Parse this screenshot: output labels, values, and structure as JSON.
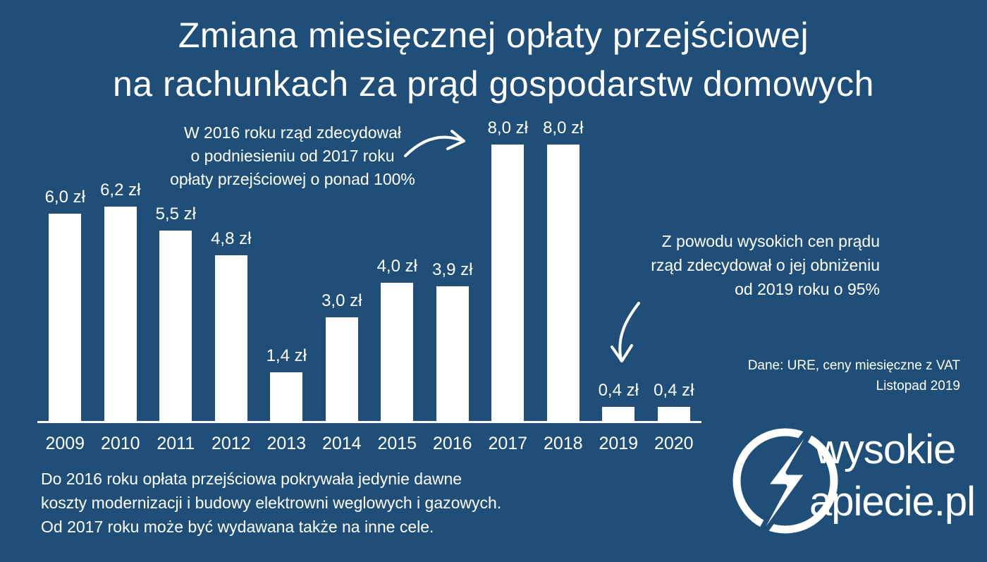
{
  "colors": {
    "background": "#1f4e79",
    "bar": "#ffffff",
    "text": "#ffffff"
  },
  "title": {
    "line1": "Zmiana miesięcznej opłaty przejściowej",
    "line2": "na rachunkach za prąd gospodarstw domowych"
  },
  "chart_data": {
    "type": "bar",
    "title": "Zmiana miesięcznej opłaty przejściowej na rachunkach za prąd gospodarstw domowych",
    "categories": [
      "2009",
      "2010",
      "2011",
      "2012",
      "2013",
      "2014",
      "2015",
      "2016",
      "2017",
      "2018",
      "2019",
      "2020"
    ],
    "values": [
      6.0,
      6.2,
      5.5,
      4.8,
      1.4,
      3.0,
      4.0,
      3.9,
      8.0,
      8.0,
      0.4,
      0.4
    ],
    "value_labels": [
      "6,0 zł",
      "6,2 zł",
      "5,5 zł",
      "4,8 zł",
      "1,4 zł",
      "3,0 zł",
      "4,0 zł",
      "3,9 zł",
      "8,0 zł",
      "8,0 zł",
      "0,4 zł",
      "0,4 zł"
    ],
    "xlabel": "",
    "ylabel": "",
    "ylim": [
      0,
      8
    ],
    "grid": false,
    "legend": false,
    "bar_color": "#ffffff"
  },
  "annotations": {
    "hike": {
      "text": "W 2016 roku rząd zdecydował\no podniesieniu od 2017 roku\nopłaty przejściowej o ponad 100%"
    },
    "cut": {
      "text": "Z powodu wysokich cen prądu\nrząd zdecydował o jej obniżeniu\nod 2019 roku o 95%"
    }
  },
  "source": {
    "text": "Dane: URE, ceny miesięczne z VAT\nListopad 2019"
  },
  "footnote": {
    "text": "Do 2016 roku opłata przejściowa pokrywała jedynie dawne\nkoszty modernizacji i budowy elektrowni weglowych i gazowych.\nOd 2017 roku może być wydawana także na inne cele."
  },
  "logo": {
    "line1": "wysokie",
    "line2": "apiecie.pl",
    "icon": "lightning-bolt-in-circle"
  }
}
